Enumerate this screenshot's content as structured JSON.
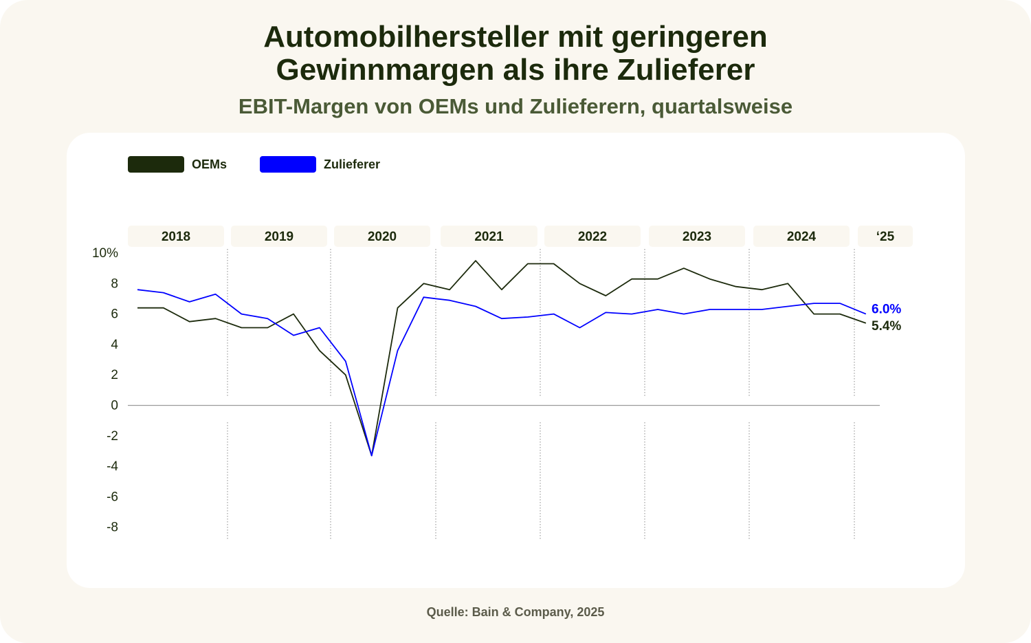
{
  "title_line1": "Automobilhersteller mit geringeren",
  "title_line2": "Gewinnmargen als ihre Zulieferer",
  "subtitle": "EBIT-Margen von OEMs und Zulieferern, quartalsweise",
  "source": "Quelle: Bain & Company, 2025",
  "colors": {
    "background": "#faf7f0",
    "card": "#ffffff",
    "oems": "#1c2a0c",
    "zulieferer": "#0000ff",
    "year_band": "#faf7f0",
    "zero_line": "#9a9a9a"
  },
  "chart_data": {
    "type": "line",
    "title": "Automobilhersteller mit geringeren Gewinnmargen als ihre Zulieferer",
    "subtitle": "EBIT-Margen von OEMs und Zulieferern, quartalsweise",
    "legend_position": "top-left",
    "year_labels": [
      "2018",
      "2019",
      "2020",
      "2021",
      "2022",
      "2023",
      "2024",
      "‘25"
    ],
    "y_ticks": [
      "10%",
      "8",
      "6",
      "4",
      "2",
      "0",
      "-2",
      "-4",
      "-6",
      "-8"
    ],
    "ylim": [
      -8,
      10
    ],
    "x": [
      "2018 Q1",
      "2018 Q2",
      "2018 Q3",
      "2018 Q4",
      "2019 Q1",
      "2019 Q2",
      "2019 Q3",
      "2019 Q4",
      "2020 Q1",
      "2020 Q2",
      "2020 Q3",
      "2020 Q4",
      "2021 Q1",
      "2021 Q2",
      "2021 Q3",
      "2021 Q4",
      "2022 Q1",
      "2022 Q2",
      "2022 Q3",
      "2022 Q4",
      "2023 Q1",
      "2023 Q2",
      "2023 Q3",
      "2023 Q4",
      "2024 Q1",
      "2024 Q2",
      "2024 Q3",
      "2024 Q4",
      "2025 Q1"
    ],
    "series": [
      {
        "name": "OEMs",
        "color": "#1c2a0c",
        "end_label": "5.4%",
        "values": [
          6.4,
          6.4,
          5.5,
          5.7,
          5.1,
          5.1,
          6.0,
          3.6,
          2.0,
          -3.3,
          6.4,
          8.0,
          7.6,
          9.5,
          7.6,
          9.3,
          9.3,
          8.0,
          7.2,
          8.3,
          8.3,
          9.0,
          8.3,
          7.8,
          7.6,
          8.0,
          6.0,
          6.0,
          5.4
        ]
      },
      {
        "name": "Zulieferer",
        "color": "#0000ff",
        "end_label": "6.0%",
        "values": [
          7.6,
          7.4,
          6.8,
          7.3,
          6.0,
          5.7,
          4.6,
          5.1,
          2.9,
          -3.3,
          3.6,
          7.1,
          6.9,
          6.5,
          5.7,
          5.8,
          6.0,
          5.1,
          6.1,
          6.0,
          6.3,
          6.0,
          6.3,
          6.3,
          6.3,
          6.5,
          6.7,
          6.7,
          6.0
        ]
      }
    ]
  }
}
